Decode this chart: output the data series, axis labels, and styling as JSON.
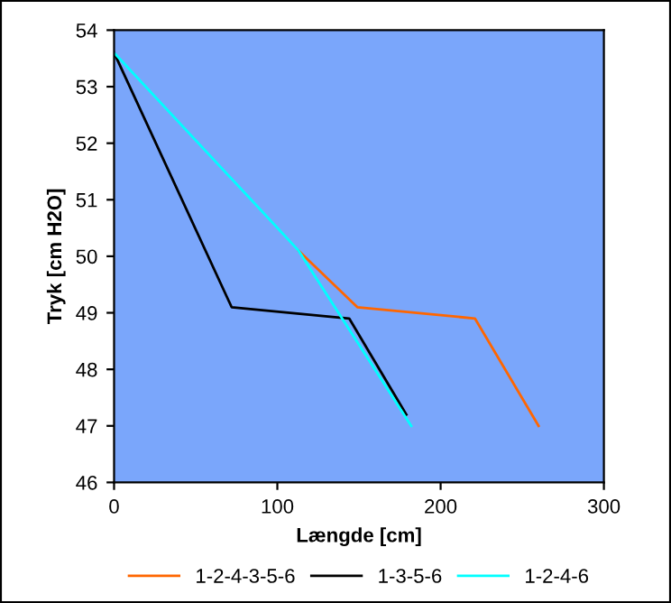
{
  "chart_data": {
    "type": "line",
    "xlabel": "Længde [cm]",
    "ylabel": "Tryk [cm H2O]",
    "xlim": [
      0,
      300
    ],
    "xticks": [
      0,
      100,
      200,
      300
    ],
    "ylim": [
      46,
      54
    ],
    "yticks": [
      46,
      47,
      48,
      49,
      50,
      51,
      52,
      53,
      54
    ],
    "grid": false,
    "legend": "bottom",
    "marker": "none",
    "line_style": "solid",
    "series": [
      {
        "name": "1-2-4-3-5-6",
        "color": "#ff6600",
        "x": [
          113,
          149,
          221,
          260
        ],
        "values": [
          50.1,
          49.1,
          48.9,
          47.0
        ]
      },
      {
        "name": "1-3-5-6",
        "color": "#000000",
        "x": [
          0,
          72,
          144,
          179
        ],
        "values": [
          53.6,
          49.1,
          48.9,
          47.2
        ]
      },
      {
        "name": "1-2-4-6",
        "color": "#00ffff",
        "x": [
          0,
          113,
          182
        ],
        "values": [
          53.6,
          50.1,
          47.0
        ]
      }
    ]
  }
}
